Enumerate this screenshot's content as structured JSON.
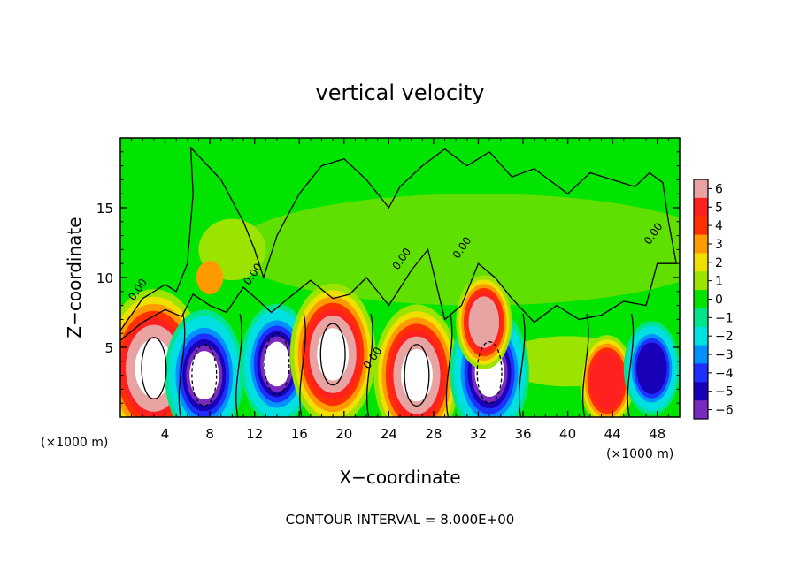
{
  "chart_data": {
    "type": "heatmap",
    "title": "vertical velocity",
    "xlabel": "X−coordinate",
    "ylabel": "Z−coordinate",
    "x_unit_left": "(×1000 m)",
    "x_unit_right": "(×1000 m)",
    "footer": "CONTOUR INTERVAL = 8.000E+00",
    "xlim": [
      0,
      50
    ],
    "ylim": [
      0,
      20
    ],
    "x_ticks": [
      4,
      8,
      12,
      16,
      20,
      24,
      28,
      32,
      36,
      40,
      44,
      48
    ],
    "x_tick_labels": [
      "4",
      "8",
      "12",
      "16",
      "20",
      "24",
      "28",
      "32",
      "36",
      "40",
      "44",
      "48"
    ],
    "y_ticks": [
      5,
      10,
      15
    ],
    "y_tick_labels": [
      "5",
      "10",
      "15"
    ],
    "colorbar": {
      "levels": [
        6,
        5,
        4,
        3,
        2,
        1,
        0,
        -1,
        -2,
        -3,
        -4,
        -5,
        -6
      ],
      "labels": [
        "6",
        "5",
        "4",
        "3",
        "2",
        "1",
        "0",
        "−1",
        "−2",
        "−3",
        "−4",
        "−5",
        "−6"
      ]
    },
    "contour_labels": [
      "0.00",
      "0.00",
      "0.00",
      "0.00",
      "0.00",
      "0.00"
    ],
    "features": [
      {
        "x": 3,
        "z": 3.5,
        "w": 20,
        "label": "updraft"
      },
      {
        "x": 7.5,
        "z": 3.0,
        "w": -12,
        "label": "downdraft"
      },
      {
        "x": 14,
        "z": 3.8,
        "w": -10,
        "label": "downdraft"
      },
      {
        "x": 19,
        "z": 4.5,
        "w": 14,
        "label": "updraft"
      },
      {
        "x": 26.5,
        "z": 3.0,
        "w": 14,
        "label": "updraft"
      },
      {
        "x": 33,
        "z": 3.2,
        "w": -12,
        "label": "downdraft"
      },
      {
        "x": 32.5,
        "z": 6.8,
        "w": 5,
        "label": "updraft"
      },
      {
        "x": 43.5,
        "z": 2.6,
        "w": 4.5,
        "label": "updraft"
      },
      {
        "x": 47.5,
        "z": 3.5,
        "w": -5,
        "label": "downdraft"
      }
    ]
  },
  "colors": {
    "scale": [
      "#e8a3a3",
      "#ff2020",
      "#ff3000",
      "#ff9a00",
      "#f0e000",
      "#9ae400",
      "#00e400",
      "#00e48c",
      "#00e0e0",
      "#0090ff",
      "#1e30ff",
      "#1800b8",
      "#7a2ac0"
    ]
  }
}
